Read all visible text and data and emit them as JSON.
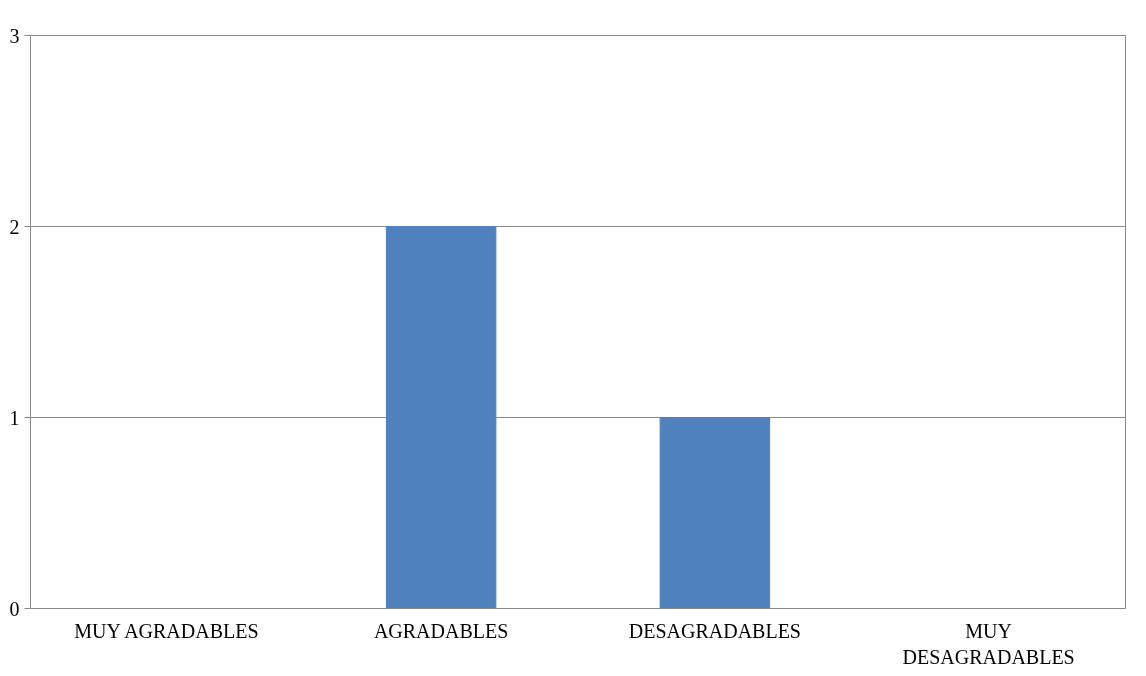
{
  "chart_data": {
    "type": "bar",
    "categories": [
      "MUY AGRADABLES",
      "AGRADABLES",
      "DESAGRADABLES",
      "MUY DESAGRADABLES"
    ],
    "values": [
      0,
      2,
      1,
      0
    ],
    "color": "#4f81bd",
    "ylim": [
      0,
      3
    ],
    "yticks": [
      0,
      1,
      2,
      3
    ],
    "grid": "y"
  }
}
